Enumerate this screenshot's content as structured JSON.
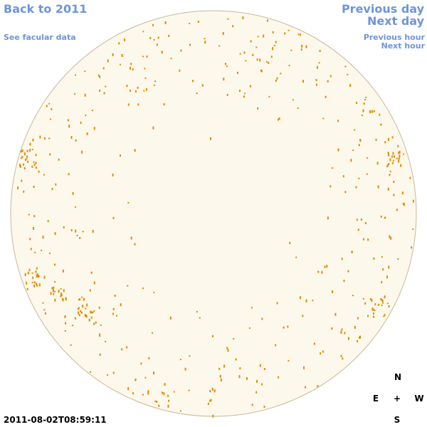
{
  "navigation": {
    "back_to_year": "Back to 2011",
    "facular_data": "See facular data",
    "previous_day": "Previous day",
    "next_day": "Next day",
    "previous_hour": "Previous hour",
    "next_hour": "Next hour"
  },
  "timestamp": "2011-08-02T08:59:11",
  "compass": {
    "north": "N",
    "east": "E",
    "center": "+",
    "west": "W",
    "south": "S"
  }
}
